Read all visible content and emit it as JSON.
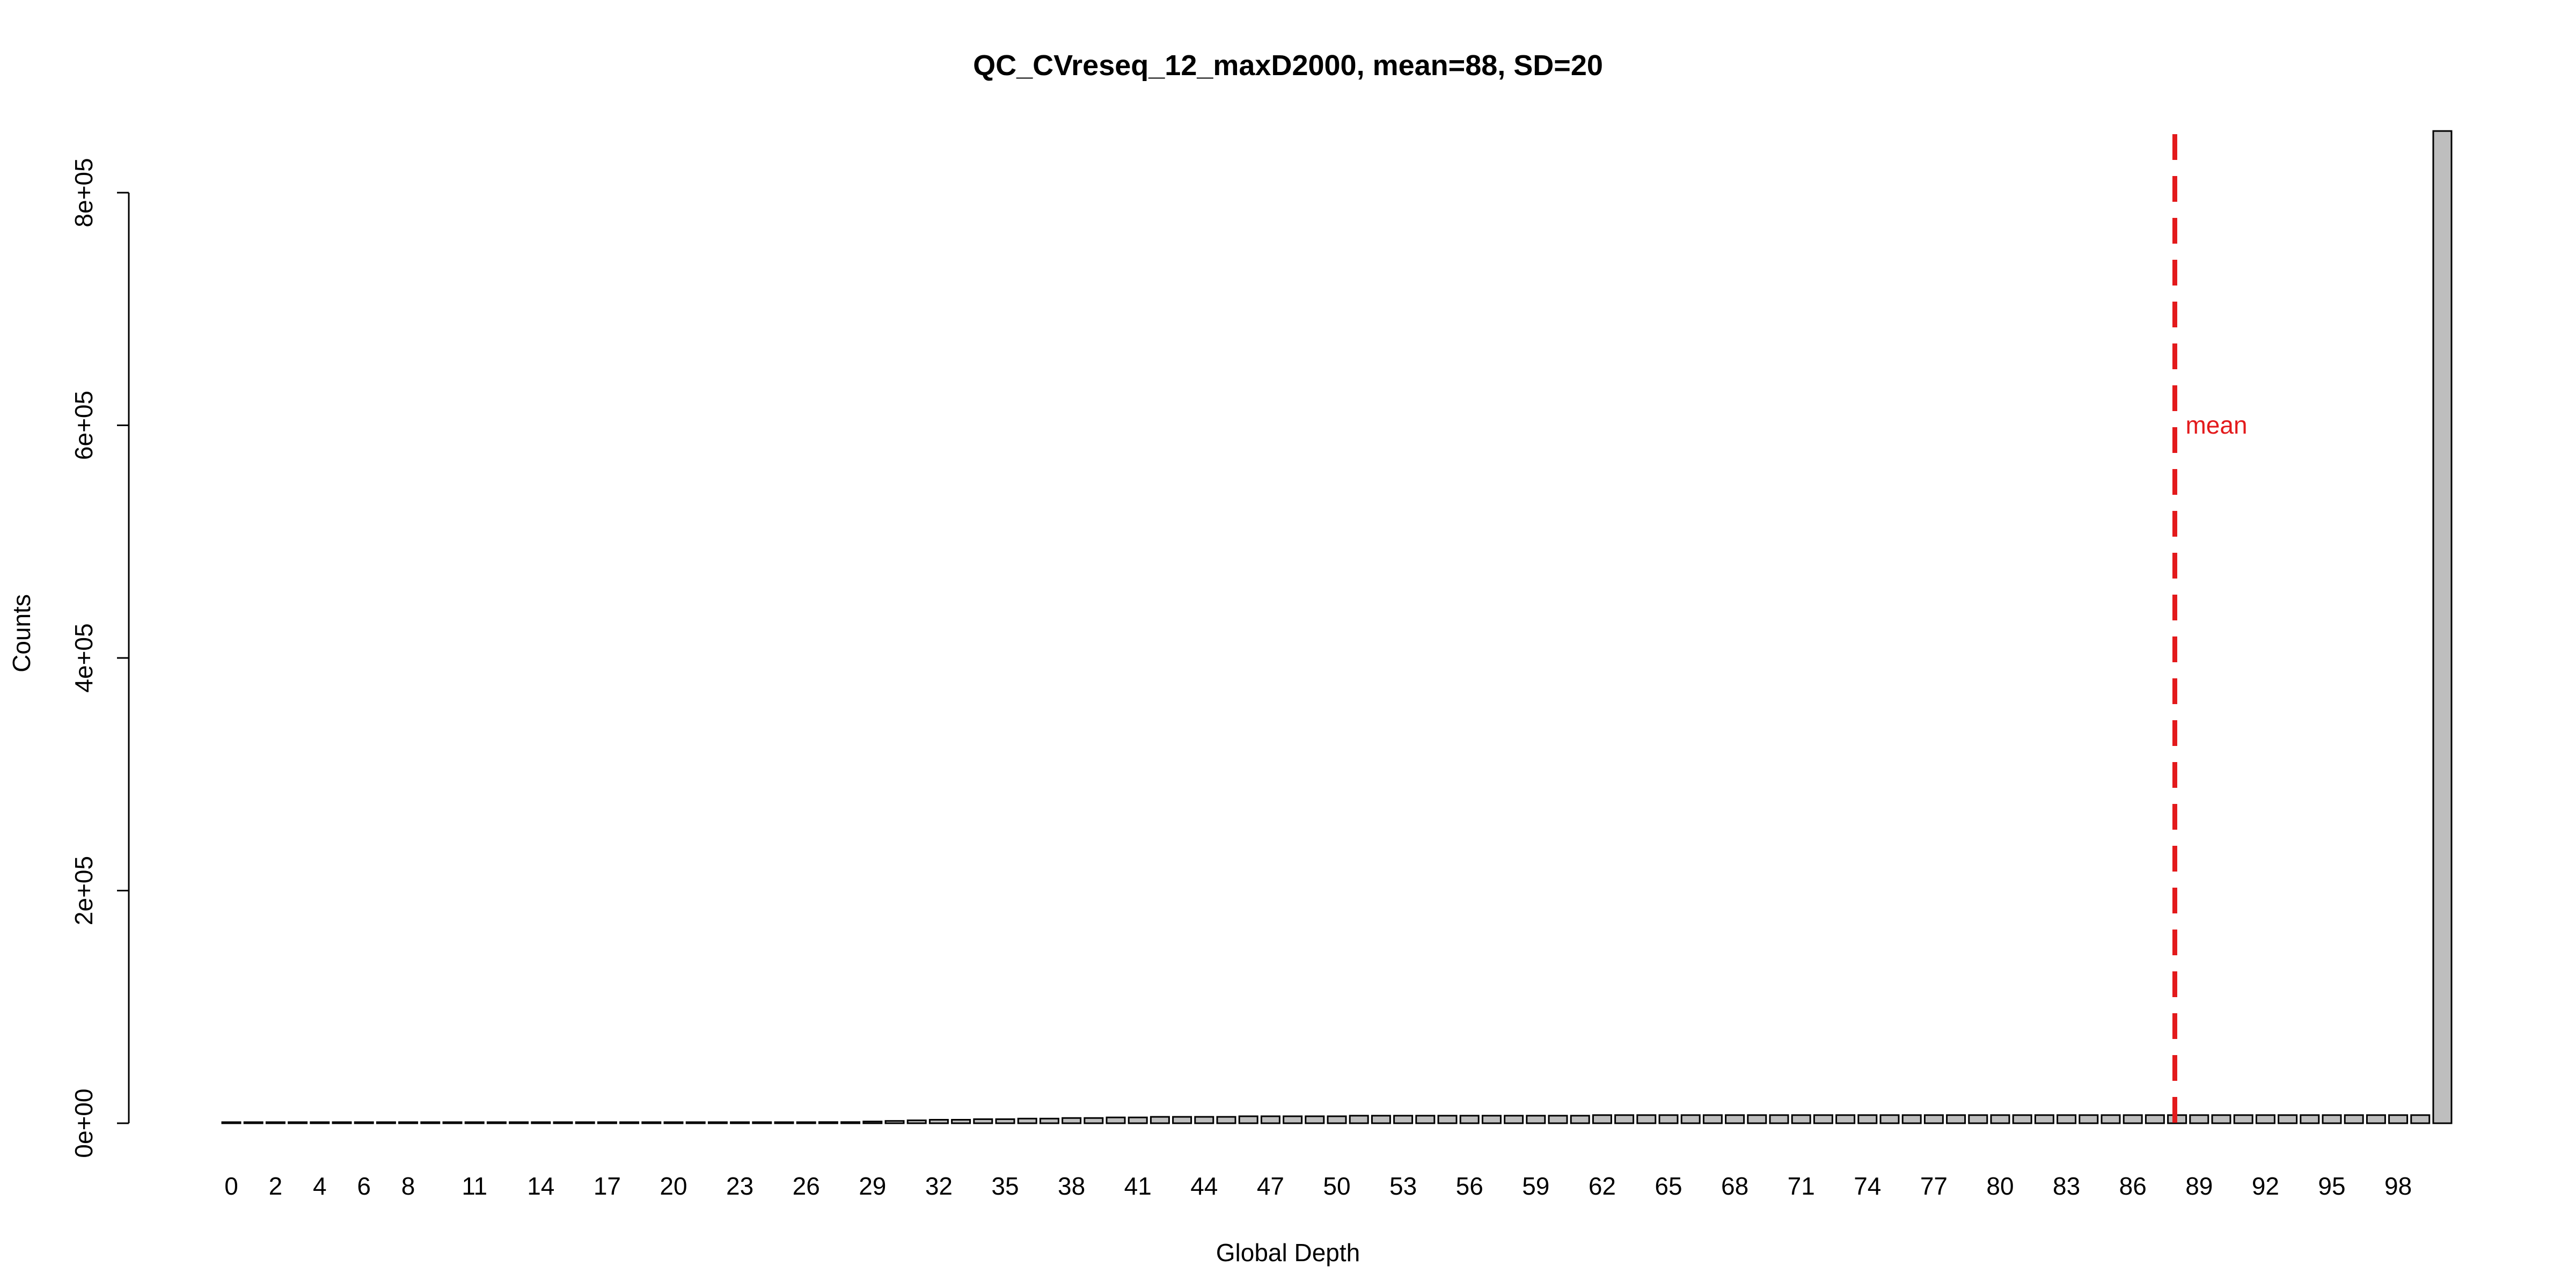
{
  "chart_data": {
    "type": "bar",
    "title": "QC_CVreseq_12_maxD2000, mean=88, SD=20",
    "xlabel": "Global Depth",
    "ylabel": "Counts",
    "ylim": [
      0,
      800000
    ],
    "y_ticks": [
      0,
      200000,
      400000,
      600000,
      800000
    ],
    "y_tick_labels": [
      "0e+00",
      "2e+05",
      "4e+05",
      "6e+05",
      "8e+05"
    ],
    "x_tick_labels": [
      "0",
      "2",
      "4",
      "6",
      "8",
      "11",
      "14",
      "17",
      "20",
      "23",
      "26",
      "29",
      "32",
      "35",
      "38",
      "41",
      "44",
      "47",
      "50",
      "53",
      "56",
      "59",
      "62",
      "65",
      "68",
      "71",
      "74",
      "77",
      "80",
      "83",
      "86",
      "89",
      "92",
      "95",
      "98"
    ],
    "grid": false,
    "legend": "none",
    "categories": [
      "0",
      "1",
      "2",
      "3",
      "4",
      "5",
      "6",
      "7",
      "8",
      "9",
      "10",
      "11",
      "12",
      "13",
      "14",
      "15",
      "16",
      "17",
      "18",
      "19",
      "20",
      "21",
      "22",
      "23",
      "24",
      "25",
      "26",
      "27",
      "28",
      "29",
      "30",
      "31",
      "32",
      "33",
      "34",
      "35",
      "36",
      "37",
      "38",
      "39",
      "40",
      "41",
      "42",
      "43",
      "44",
      "45",
      "46",
      "47",
      "48",
      "49",
      "50",
      "51",
      "52",
      "53",
      "54",
      "55",
      "56",
      "57",
      "58",
      "59",
      "60",
      "61",
      "62",
      "63",
      "64",
      "65",
      "66",
      "67",
      "68",
      "69",
      "70",
      "71",
      "72",
      "73",
      "74",
      "75",
      "76",
      "77",
      "78",
      "79",
      "80",
      "81",
      "82",
      "83",
      "84",
      "85",
      "86",
      "87",
      "88",
      "89",
      "90",
      "91",
      "92",
      "93",
      "94",
      "95",
      "96",
      "97",
      "98",
      "99",
      "100"
    ],
    "values": [
      0,
      0,
      0,
      0,
      0,
      0,
      0,
      0,
      0,
      0,
      0,
      0,
      0,
      0,
      0,
      0,
      0,
      0,
      0,
      0,
      0,
      0,
      0,
      0,
      0,
      500,
      500,
      1000,
      1000,
      1500,
      2000,
      2500,
      3000,
      3000,
      3500,
      3500,
      4000,
      4000,
      4500,
      4500,
      5000,
      5000,
      5500,
      5500,
      5500,
      5500,
      6000,
      6000,
      6000,
      6000,
      6000,
      6500,
      6500,
      6500,
      6500,
      6500,
      6500,
      6500,
      6500,
      6500,
      6500,
      6500,
      7000,
      7000,
      7000,
      7000,
      7000,
      7000,
      7000,
      7000,
      7000,
      7000,
      7000,
      7000,
      7000,
      7000,
      7000,
      7000,
      7000,
      7000,
      7000,
      7000,
      7000,
      7000,
      7000,
      7000,
      7000,
      7000,
      7000,
      7000,
      7000,
      7000,
      7000,
      7000,
      7000,
      7000,
      7000,
      7000,
      7000,
      7000,
      853000
    ],
    "mean_line": {
      "x": 87.9,
      "label": "mean"
    },
    "colors": {
      "bar_fill": "#bebebe",
      "bar_stroke": "#000000",
      "mean_line": "#e31a1c",
      "axis": "#000000"
    }
  }
}
